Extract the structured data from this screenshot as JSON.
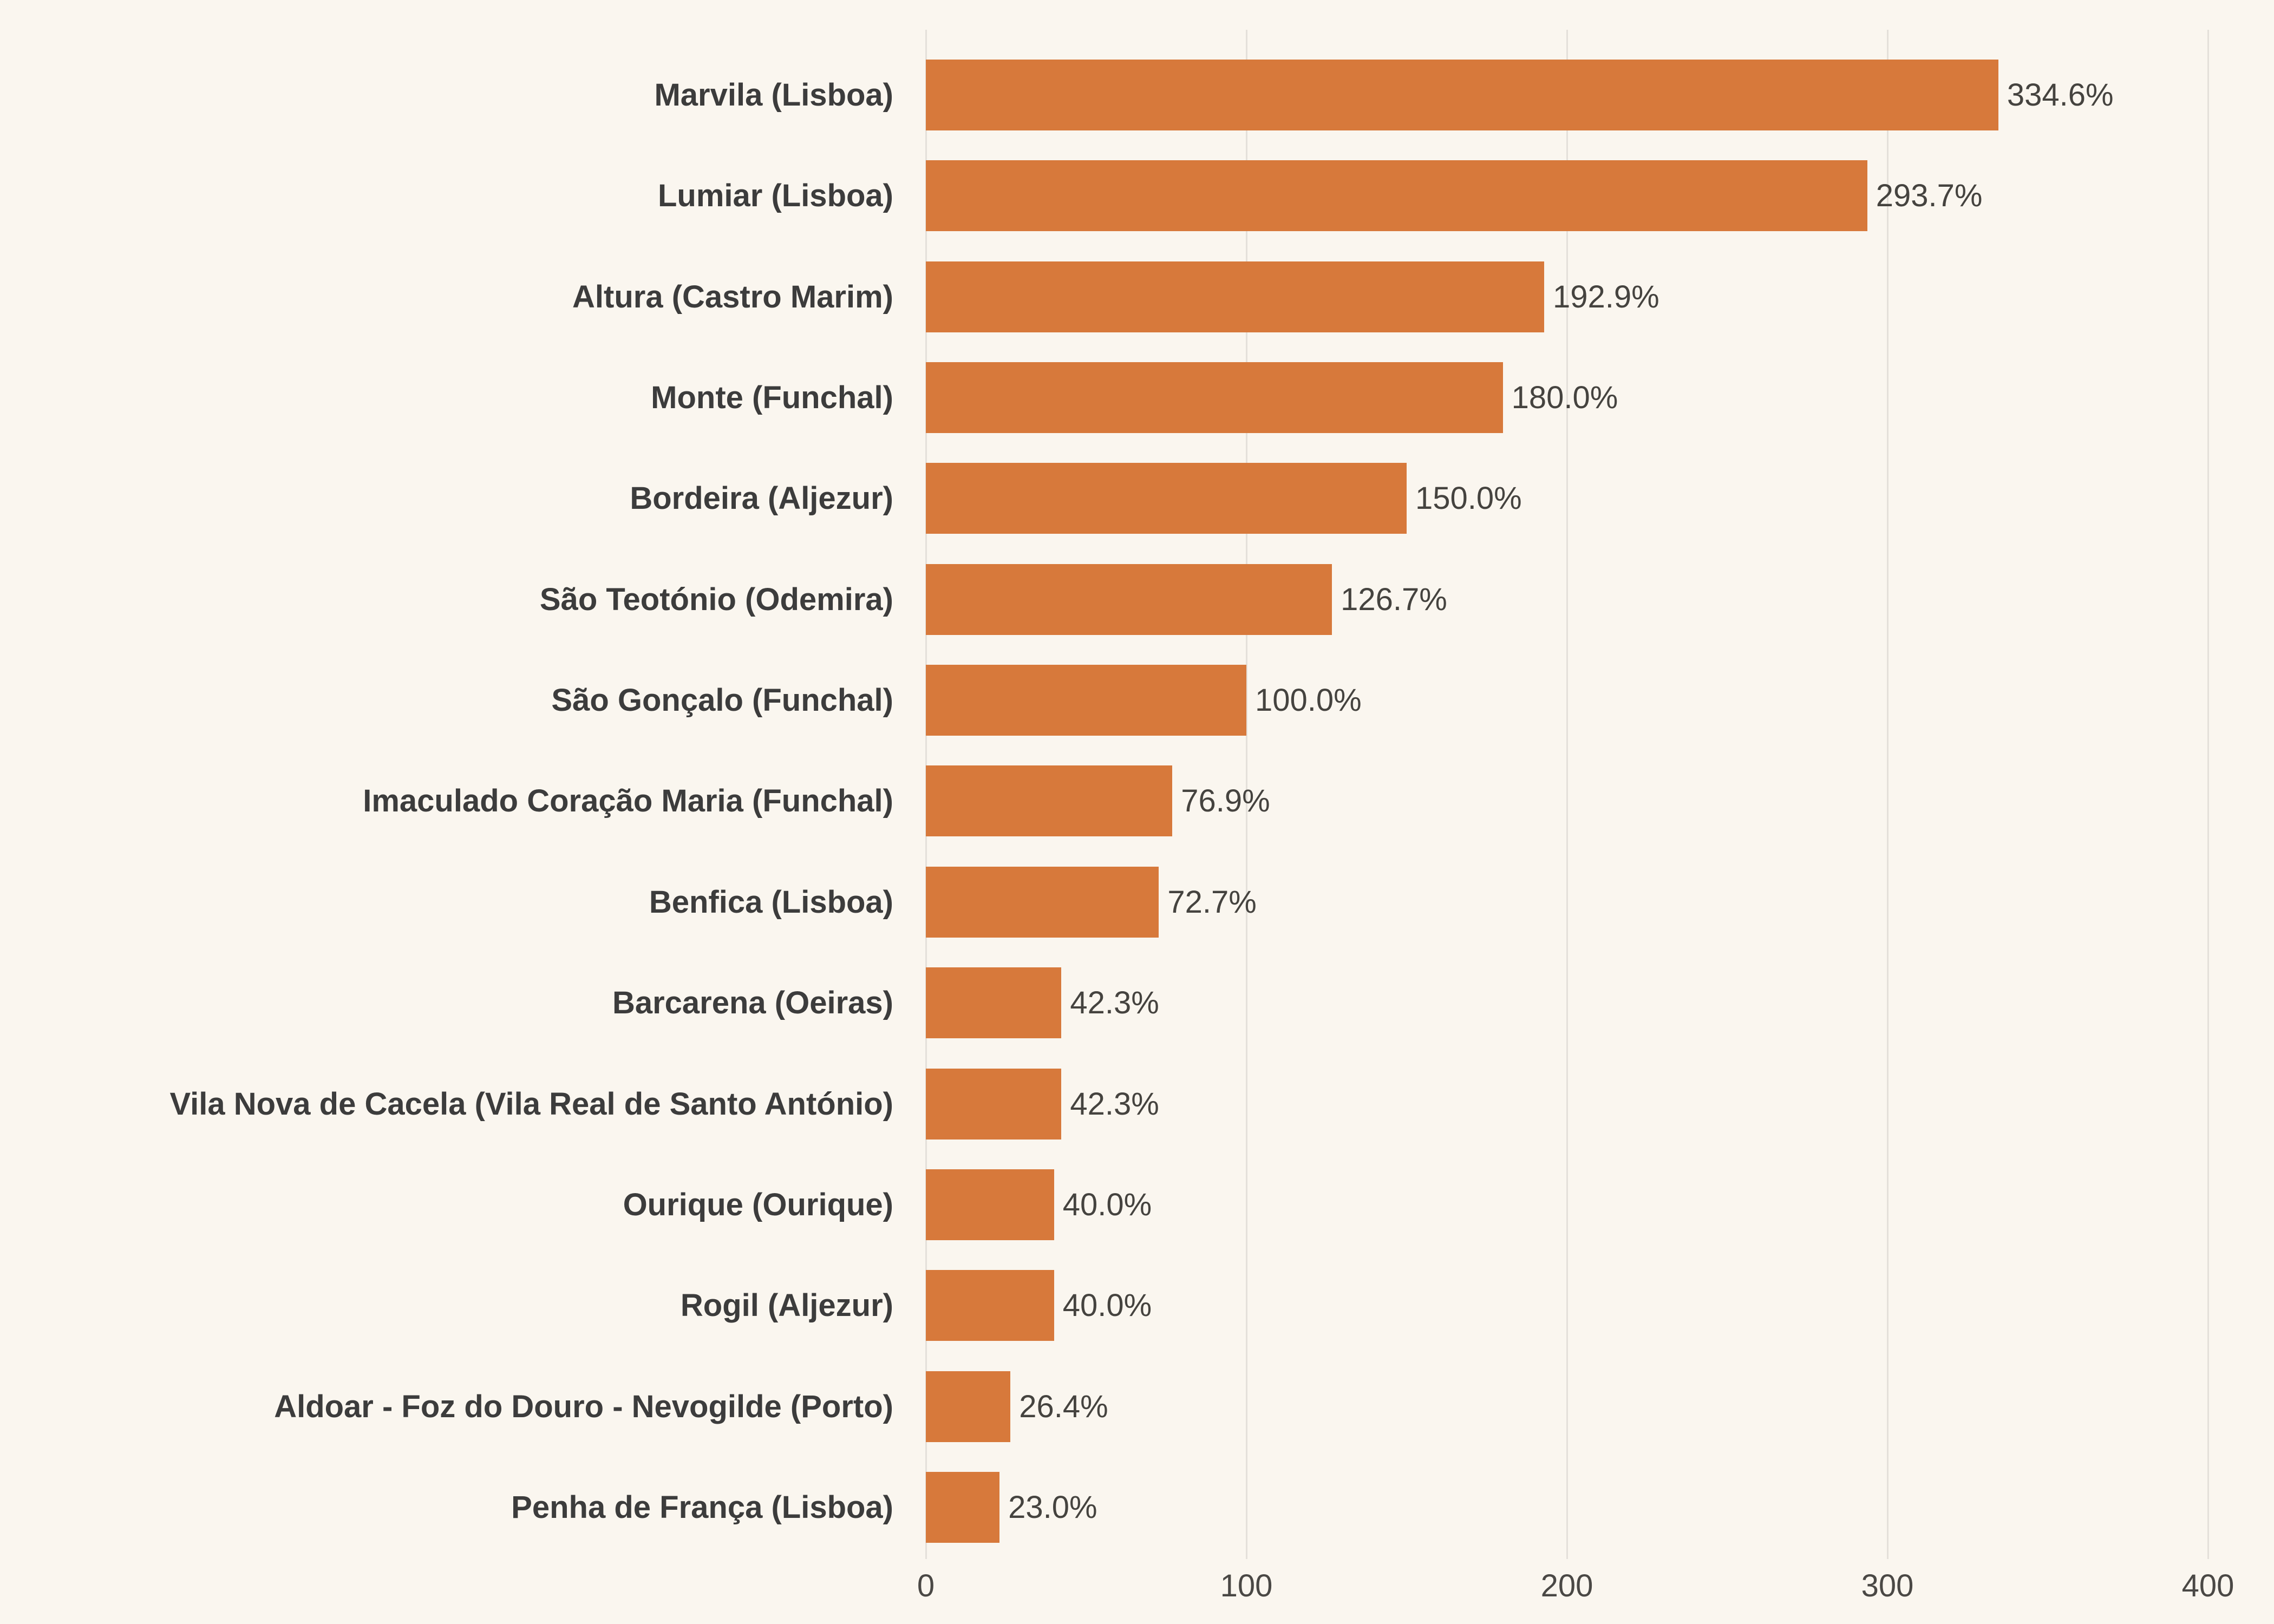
{
  "colors": {
    "background": "#FAF6EF",
    "bar": "#D7793B",
    "grid": "#E4E0DA",
    "category_text": "#3C3C3C",
    "value_text": "#45433F",
    "tick_text": "#4A4845"
  },
  "chart_data": {
    "type": "bar",
    "orientation": "horizontal",
    "title": "",
    "xlabel": "",
    "ylabel": "",
    "grid": "vertical-gridlines-only",
    "legend": "none",
    "xlim": [
      0,
      400
    ],
    "x_ticks": [
      0,
      100,
      200,
      300,
      400
    ],
    "x_tick_labels": [
      "0",
      "100",
      "200",
      "300",
      "400"
    ],
    "categories": [
      "Marvila (Lisboa)",
      "Lumiar (Lisboa)",
      "Altura (Castro Marim)",
      "Monte (Funchal)",
      "Bordeira (Aljezur)",
      "São Teotónio (Odemira)",
      "São Gonçalo (Funchal)",
      "Imaculado Coração Maria (Funchal)",
      "Benfica (Lisboa)",
      "Barcarena (Oeiras)",
      "Vila Nova de Cacela (Vila Real de Santo António)",
      "Ourique (Ourique)",
      "Rogil (Aljezur)",
      "Aldoar - Foz do Douro - Nevogilde (Porto)",
      "Penha de França (Lisboa)"
    ],
    "values": [
      334.6,
      293.7,
      192.9,
      180.0,
      150.0,
      126.7,
      100.0,
      76.9,
      72.7,
      42.3,
      42.3,
      40.0,
      40.0,
      26.4,
      23.0
    ],
    "value_labels": [
      "334.6%",
      "293.7%",
      "192.9%",
      "180.0%",
      "150.0%",
      "126.7%",
      "100.0%",
      "76.9%",
      "72.7%",
      "42.3%",
      "42.3%",
      "40.0%",
      "40.0%",
      "26.4%",
      "23.0%"
    ]
  }
}
